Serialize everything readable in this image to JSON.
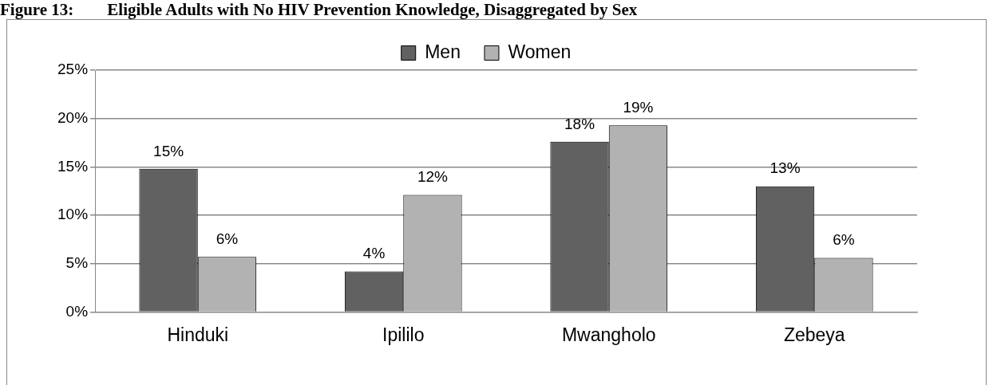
{
  "chart_data": {
    "type": "bar",
    "title": "Figure 13:        Eligible Adults with No HIV Prevention Knowledge, Disaggregated by Sex",
    "categories": [
      "Hinduki",
      "Ipililo",
      "Mwangholo",
      "Zebeya"
    ],
    "series": [
      {
        "name": "Men",
        "color": "#616161",
        "values": [
          14.8,
          4.2,
          17.6,
          13.0
        ],
        "value_labels": [
          "15%",
          "4%",
          "18%",
          "13%"
        ]
      },
      {
        "name": "Women",
        "color": "#b2b2b2",
        "values": [
          5.7,
          12.1,
          19.3,
          5.6
        ],
        "value_labels": [
          "6%",
          "12%",
          "19%",
          "6%"
        ]
      }
    ],
    "ylim": [
      0,
      25
    ],
    "yticks": [
      {
        "value": 0,
        "label": "0%"
      },
      {
        "value": 5,
        "label": "5%"
      },
      {
        "value": 10,
        "label": "10%"
      },
      {
        "value": 15,
        "label": "15%"
      },
      {
        "value": 20,
        "label": "20%"
      },
      {
        "value": 25,
        "label": "25%"
      }
    ],
    "grid": "y",
    "legend": "top"
  }
}
